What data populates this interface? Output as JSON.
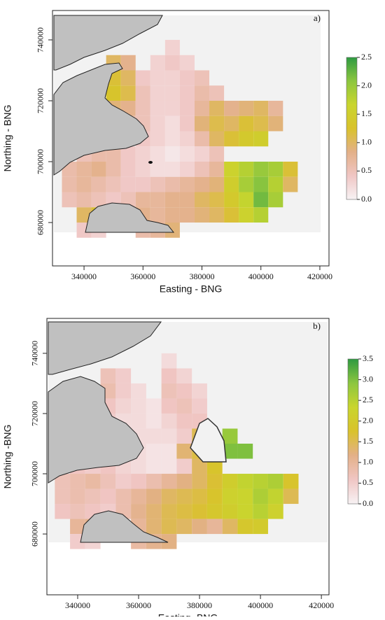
{
  "chart_data": [
    {
      "type": "heatmap",
      "panel_label": "a)",
      "xlabel": "Easting - BNG",
      "ylabel": "Northing - BNG",
      "xlim": [
        329300,
        423100
      ],
      "ylim": [
        665750,
        749650
      ],
      "xticks": [
        340000,
        360000,
        380000,
        400000,
        420000
      ],
      "yticks": [
        680000,
        700000,
        720000,
        740000
      ],
      "x": [
        335000,
        340000,
        345000,
        350000,
        355000,
        360000,
        365000,
        370000,
        375000,
        380000,
        385000,
        390000,
        395000,
        400000,
        405000,
        410000,
        415000
      ],
      "y": [
        742500,
        737500,
        732500,
        727500,
        722500,
        717500,
        712500,
        707500,
        702500,
        697500,
        692500,
        687500,
        682500,
        677500
      ],
      "values": [
        [
          null,
          null,
          null,
          null,
          null,
          null,
          null,
          null,
          null,
          null,
          null,
          null,
          null,
          null,
          null,
          null,
          null
        ],
        [
          null,
          null,
          null,
          null,
          null,
          null,
          null,
          0.3,
          null,
          null,
          null,
          null,
          null,
          null,
          null,
          null,
          null
        ],
        [
          null,
          null,
          null,
          1.0,
          0.8,
          null,
          0.3,
          0.4,
          0.3,
          null,
          null,
          null,
          null,
          null,
          null,
          null,
          null
        ],
        [
          null,
          null,
          null,
          1.2,
          1.0,
          0.4,
          0.3,
          0.3,
          0.4,
          0.5,
          null,
          null,
          null,
          null,
          null,
          null,
          null
        ],
        [
          null,
          null,
          null,
          1.3,
          1.1,
          0.5,
          0.3,
          0.3,
          0.4,
          0.6,
          0.5,
          null,
          null,
          null,
          null,
          null,
          null
        ],
        [
          null,
          null,
          null,
          0.9,
          0.8,
          0.5,
          0.3,
          0.3,
          0.4,
          0.7,
          1.0,
          0.8,
          0.9,
          1.0,
          0.7,
          null,
          null
        ],
        [
          null,
          null,
          null,
          null,
          0.6,
          0.5,
          0.3,
          0.2,
          0.4,
          0.9,
          1.1,
          1.0,
          1.2,
          1.1,
          0.9,
          null,
          null
        ],
        [
          null,
          null,
          null,
          null,
          null,
          0.4,
          0.3,
          0.2,
          0.3,
          0.6,
          1.0,
          1.2,
          1.4,
          1.5,
          null,
          null,
          null
        ],
        [
          null,
          0.5,
          0.6,
          0.6,
          0.4,
          0.3,
          0.2,
          0.1,
          0.2,
          0.3,
          0.5,
          null,
          null,
          null,
          null,
          null,
          null
        ],
        [
          0.6,
          0.7,
          0.8,
          0.6,
          0.4,
          0.3,
          0.2,
          0.2,
          0.3,
          0.5,
          0.7,
          1.6,
          1.8,
          2.0,
          1.9,
          1.2,
          null
        ],
        [
          0.6,
          0.7,
          0.6,
          0.5,
          0.4,
          0.4,
          0.5,
          0.6,
          0.7,
          0.8,
          0.9,
          1.5,
          1.9,
          2.1,
          1.8,
          1.0,
          null
        ],
        [
          0.5,
          0.6,
          0.5,
          0.4,
          0.5,
          0.7,
          0.7,
          0.8,
          0.8,
          1.0,
          1.1,
          1.4,
          1.7,
          2.2,
          1.9,
          null,
          null
        ],
        [
          null,
          1.0,
          1.2,
          0.6,
          null,
          0.8,
          0.7,
          0.8,
          0.8,
          0.9,
          1.0,
          1.2,
          1.6,
          1.8,
          null,
          null,
          null
        ],
        [
          null,
          0.4,
          0.3,
          null,
          null,
          0.6,
          0.7,
          0.9,
          null,
          null,
          null,
          null,
          null,
          null,
          null,
          null,
          null
        ]
      ],
      "colorscale": [
        "#f7f2f4",
        "#f0c6c4",
        "#e3b088",
        "#d9c22c",
        "#c9d52e",
        "#8cc63f",
        "#2e9a41"
      ],
      "colorbar_lim": [
        0,
        2.5
      ],
      "colorbar_ticks": [
        {
          "value": 0,
          "label": "0.0"
        },
        {
          "value": 0.5,
          "label": "0.5"
        },
        {
          "value": 1,
          "label": "1.0"
        },
        {
          "value": 1.5,
          "label": "1.5"
        },
        {
          "value": 2,
          "label": "2.0"
        },
        {
          "value": 2.5,
          "label": "2.5"
        }
      ]
    },
    {
      "type": "heatmap",
      "panel_label": "b)",
      "xlabel": "Easting -BNG",
      "ylabel": "Northing -BNG",
      "xlim": [
        329900,
        422500
      ],
      "ylim": [
        659800,
        751600
      ],
      "xticks": [
        340000,
        360000,
        380000,
        400000,
        420000
      ],
      "yticks": [
        680000,
        700000,
        720000,
        740000
      ],
      "x": [
        335000,
        340000,
        345000,
        350000,
        355000,
        360000,
        365000,
        370000,
        375000,
        380000,
        385000,
        390000,
        395000,
        400000,
        405000,
        410000,
        415000
      ],
      "y": [
        742500,
        737500,
        732500,
        727500,
        722500,
        717500,
        712500,
        707500,
        702500,
        697500,
        692500,
        687500,
        682500,
        677500
      ],
      "values": [
        [
          null,
          null,
          null,
          null,
          null,
          null,
          null,
          null,
          null,
          null,
          null,
          null,
          null,
          null,
          null,
          null,
          null
        ],
        [
          null,
          null,
          null,
          null,
          null,
          null,
          null,
          0.3,
          null,
          null,
          null,
          null,
          null,
          null,
          null,
          null,
          null
        ],
        [
          null,
          null,
          null,
          0.7,
          0.5,
          null,
          null,
          0.6,
          0.4,
          null,
          null,
          null,
          null,
          null,
          null,
          null,
          null
        ],
        [
          null,
          null,
          null,
          0.8,
          0.5,
          0.3,
          null,
          0.7,
          0.6,
          0.4,
          null,
          null,
          null,
          null,
          null,
          null,
          null
        ],
        [
          null,
          null,
          null,
          0.6,
          0.4,
          0.3,
          0.2,
          0.6,
          0.7,
          0.5,
          null,
          null,
          null,
          null,
          null,
          null,
          null
        ],
        [
          null,
          null,
          null,
          0.5,
          0.3,
          0.3,
          0.2,
          0.4,
          0.6,
          0.6,
          null,
          null,
          null,
          null,
          null,
          null,
          null
        ],
        [
          null,
          null,
          null,
          null,
          0.3,
          0.3,
          0.3,
          0.3,
          0.5,
          1.5,
          null,
          2.8,
          null,
          null,
          null,
          null,
          null
        ],
        [
          null,
          null,
          null,
          null,
          null,
          0.3,
          0.2,
          0.2,
          1.3,
          1.6,
          null,
          3.0,
          3.0,
          null,
          null,
          null,
          null
        ],
        [
          null,
          0.6,
          0.5,
          0.6,
          0.4,
          0.3,
          0.2,
          0.2,
          0.5,
          1.4,
          1.8,
          null,
          null,
          null,
          null,
          null,
          null
        ],
        [
          0.7,
          0.8,
          0.9,
          0.7,
          0.5,
          0.6,
          0.8,
          1.0,
          1.2,
          1.4,
          1.7,
          2.1,
          2.4,
          2.5,
          2.6,
          1.8,
          null
        ],
        [
          0.7,
          0.8,
          0.7,
          0.6,
          0.8,
          1.0,
          1.2,
          1.4,
          1.5,
          1.6,
          1.8,
          2.2,
          2.3,
          2.6,
          2.4,
          1.5,
          null
        ],
        [
          0.6,
          0.7,
          0.6,
          0.5,
          0.8,
          1.1,
          1.3,
          1.5,
          1.6,
          1.7,
          1.9,
          2.1,
          2.3,
          2.5,
          2.2,
          null,
          null
        ],
        [
          null,
          1.0,
          1.1,
          0.7,
          null,
          1.0,
          1.3,
          1.5,
          1.4,
          1.2,
          1.0,
          1.4,
          1.9,
          2.0,
          null,
          null,
          null
        ],
        [
          null,
          0.5,
          0.4,
          null,
          null,
          0.9,
          1.1,
          1.2,
          null,
          null,
          null,
          null,
          null,
          null,
          null,
          null,
          null
        ]
      ],
      "colorscale": [
        "#f7f2f4",
        "#f0c6c4",
        "#e3b088",
        "#d9c22c",
        "#c9d52e",
        "#8cc63f",
        "#2e9a41"
      ],
      "colorbar_lim": [
        0,
        3.5
      ],
      "colorbar_ticks": [
        {
          "value": 0,
          "label": "0.0"
        },
        {
          "value": 0.5,
          "label": "0.5"
        },
        {
          "value": 1,
          "label": "1.0"
        },
        {
          "value": 1.5,
          "label": "1.5"
        },
        {
          "value": 2,
          "label": "2.0"
        },
        {
          "value": 2.5,
          "label": "2.5"
        },
        {
          "value": 3,
          "label": "3.0"
        },
        {
          "value": 3.5,
          "label": "3.5"
        }
      ]
    }
  ]
}
